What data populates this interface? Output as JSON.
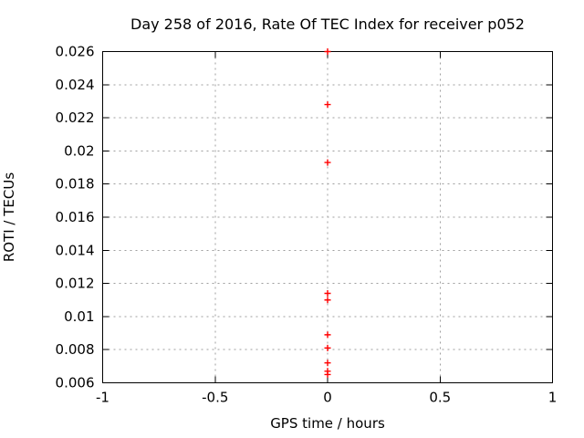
{
  "chart_data": {
    "type": "scatter",
    "title": "Day 258 of 2016, Rate Of TEC Index for receiver p052",
    "xlabel": "GPS time / hours",
    "ylabel": "ROTI / TECUs",
    "xlim": [
      -1,
      1
    ],
    "ylim": [
      0.006,
      0.026
    ],
    "xticks": [
      {
        "v": -1,
        "label": "-1"
      },
      {
        "v": -0.5,
        "label": "-0.5"
      },
      {
        "v": 0,
        "label": "0"
      },
      {
        "v": 0.5,
        "label": "0.5"
      },
      {
        "v": 1,
        "label": "1"
      }
    ],
    "yticks": [
      {
        "v": 0.006,
        "label": "0.006"
      },
      {
        "v": 0.008,
        "label": "0.008"
      },
      {
        "v": 0.01,
        "label": "0.01"
      },
      {
        "v": 0.012,
        "label": "0.012"
      },
      {
        "v": 0.014,
        "label": "0.014"
      },
      {
        "v": 0.016,
        "label": "0.016"
      },
      {
        "v": 0.018,
        "label": "0.018"
      },
      {
        "v": 0.02,
        "label": "0.02"
      },
      {
        "v": 0.022,
        "label": "0.022"
      },
      {
        "v": 0.024,
        "label": "0.024"
      },
      {
        "v": 0.026,
        "label": "0.026"
      }
    ],
    "grid": {
      "on": true,
      "x_lines_at": [
        -0.5,
        0,
        0.5
      ],
      "y_lines_at": [
        0.008,
        0.01,
        0.012,
        0.014,
        0.016,
        0.018,
        0.02,
        0.022,
        0.024
      ],
      "style": "dotted"
    },
    "legend": "none",
    "series": [
      {
        "name": "ROTI",
        "marker": "plus",
        "color": "#ff0000",
        "points": [
          {
            "x": 0,
            "y": 0.026
          },
          {
            "x": 0,
            "y": 0.0228
          },
          {
            "x": 0,
            "y": 0.0193
          },
          {
            "x": 0,
            "y": 0.0114
          },
          {
            "x": 0,
            "y": 0.011
          },
          {
            "x": 0,
            "y": 0.0089
          },
          {
            "x": 0,
            "y": 0.0081
          },
          {
            "x": 0,
            "y": 0.0072
          },
          {
            "x": 0,
            "y": 0.0067
          },
          {
            "x": 0,
            "y": 0.0065
          }
        ]
      }
    ]
  },
  "colors": {
    "background": "#ffffff",
    "border": "#000000",
    "grid": "#9e9e9e",
    "text": "#000000",
    "marker": "#ff0000"
  }
}
